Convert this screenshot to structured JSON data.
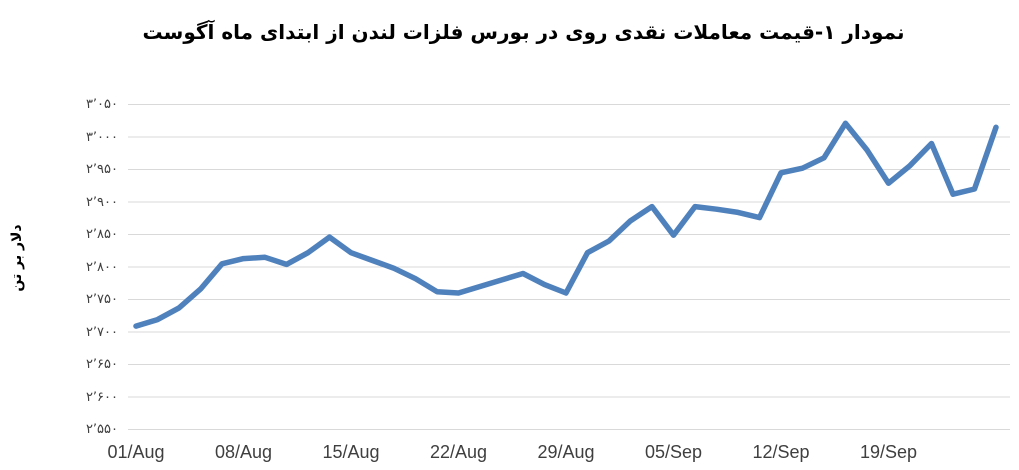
{
  "chart_data": {
    "type": "line",
    "title": "نمودار ۱-قیمت معاملات نقدی روی در بورس فلزات لندن از ابتدای ماه آگوست",
    "ylabel": "دلار بر تن",
    "xlabel": "",
    "ylim": [
      2550,
      3050
    ],
    "y_tick_step": 50,
    "grid": "horizontal-only",
    "legend": "none",
    "line_color": "#4F81BD",
    "gridline_color": "#D9D9D9",
    "tick_text_color": "#3F3F3F",
    "y_ticks": [
      {
        "value": 3050,
        "label": "۳٬۰۵۰"
      },
      {
        "value": 3000,
        "label": "۳٬۰۰۰"
      },
      {
        "value": 2950,
        "label": "۲٬۹۵۰"
      },
      {
        "value": 2900,
        "label": "۲٬۹۰۰"
      },
      {
        "value": 2850,
        "label": "۲٬۸۵۰"
      },
      {
        "value": 2800,
        "label": "۲٬۸۰۰"
      },
      {
        "value": 2750,
        "label": "۲٬۷۵۰"
      },
      {
        "value": 2700,
        "label": "۲٬۷۰۰"
      },
      {
        "value": 2650,
        "label": "۲٬۶۵۰"
      },
      {
        "value": 2600,
        "label": "۲٬۶۰۰"
      },
      {
        "value": 2550,
        "label": "۲٬۵۵۰"
      }
    ],
    "x_tick_labels": [
      "01/Aug",
      "08/Aug",
      "15/Aug",
      "22/Aug",
      "29/Aug",
      "05/Sep",
      "12/Sep",
      "19/Sep"
    ],
    "x_tick_every": 5,
    "series": [
      {
        "values": [
          2709,
          2719,
          2737,
          2766,
          2805,
          2813,
          2815,
          2804,
          2822,
          2846,
          2822,
          2810,
          2798,
          2782,
          2762,
          2760,
          2770,
          2780,
          2790,
          2773,
          2760,
          2822,
          2840,
          2871,
          2893,
          2849,
          2893,
          2889,
          2884,
          2876,
          2945,
          2952,
          2968,
          3021,
          2980,
          2929,
          2956,
          2990,
          2912,
          2920,
          3015
        ]
      }
    ]
  }
}
